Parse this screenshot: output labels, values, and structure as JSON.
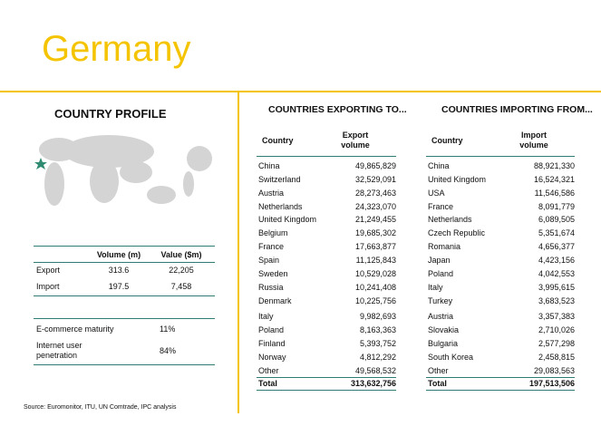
{
  "header": {
    "title": "Germany"
  },
  "profile": {
    "title": "COUNTRY PROFILE",
    "trade": {
      "headers": [
        "Volume (m)",
        "Value ($m)"
      ],
      "rows": [
        [
          "Export",
          "313.6",
          "22,205"
        ],
        [
          "Import",
          "197.5",
          "7,458"
        ]
      ]
    },
    "digital": {
      "rows": [
        [
          "E-commerce maturity",
          "11%"
        ],
        [
          "Internet user penetration",
          "84%"
        ]
      ]
    },
    "source": "Source: Euromonitor, ITU, UN Comtrade, IPC analysis"
  },
  "exporting": {
    "title": "COUNTRIES EXPORTING TO...",
    "headers": [
      "Country",
      "Export volume"
    ],
    "rows": [
      [
        "China",
        "49,865,829"
      ],
      [
        "Switzerland",
        "32,529,091"
      ],
      [
        "Austria",
        "28,273,463"
      ],
      [
        "Netherlands",
        "24,323,070"
      ],
      [
        "United Kingdom",
        "21,249,455"
      ],
      [
        "Belgium",
        "19,685,302"
      ],
      [
        "France",
        "17,663,877"
      ],
      [
        "Spain",
        "11,125,843"
      ],
      [
        "Sweden",
        "10,529,028"
      ],
      [
        "Russia",
        "10,241,408"
      ],
      [
        "Denmark",
        "10,225,756"
      ],
      [
        "Italy",
        "9,982,693"
      ],
      [
        "Poland",
        "8,163,363"
      ],
      [
        "Finland",
        "5,393,752"
      ],
      [
        "Norway",
        "4,812,292"
      ],
      [
        "Other",
        "49,568,532"
      ]
    ],
    "total": [
      "Total",
      "313,632,756"
    ]
  },
  "importing": {
    "title": "COUNTRIES IMPORTING FROM...",
    "headers": [
      "Country",
      "Import volume"
    ],
    "rows": [
      [
        "China",
        "88,921,330"
      ],
      [
        "United Kingdom",
        "16,524,321"
      ],
      [
        "USA",
        "11,546,586"
      ],
      [
        "France",
        "8,091,779"
      ],
      [
        "Netherlands",
        "6,089,505"
      ],
      [
        "Czech Republic",
        "5,351,674"
      ],
      [
        "Romania",
        "4,656,377"
      ],
      [
        "Japan",
        "4,423,156"
      ],
      [
        "Poland",
        "4,042,553"
      ],
      [
        "Italy",
        "3,995,615"
      ],
      [
        "Turkey",
        "3,683,523"
      ],
      [
        "Austria",
        "3,357,383"
      ],
      [
        "Slovakia",
        "2,710,026"
      ],
      [
        "Bulgaria",
        "2,577,298"
      ],
      [
        "South Korea",
        "2,458,815"
      ],
      [
        "Other",
        "29,083,563"
      ]
    ],
    "total": [
      "Total",
      "197,513,506"
    ]
  }
}
